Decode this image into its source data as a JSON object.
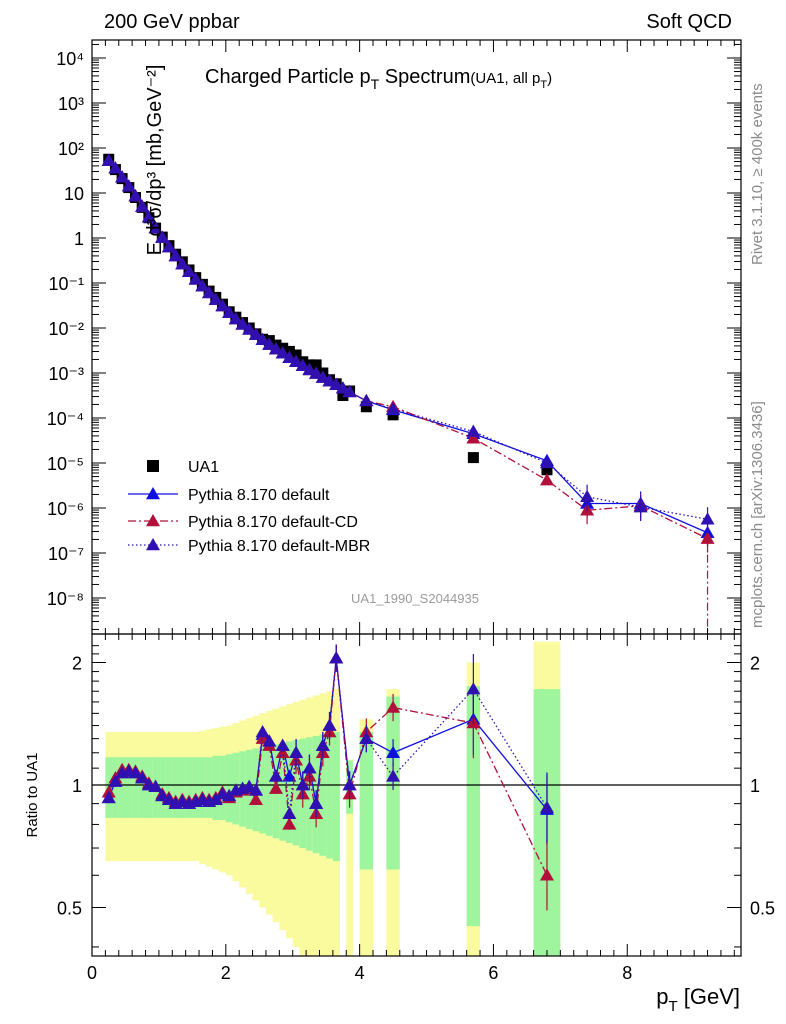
{
  "header": {
    "left": "200 GeV ppbar",
    "right": "Soft QCD"
  },
  "side_labels": {
    "rivet": "Rivet 3.1.10, ≥ 400k events",
    "mcplots": "mcplots.cern.ch [arXiv:1306.3436]"
  },
  "chart_data": [
    {
      "type": "scatter",
      "title_main": "Charged Particle p",
      "title_sub": "T",
      "title_main2": " Spectrum",
      "title_note": "(UA1, all p",
      "title_note_sub": "T",
      "title_note_end": ")",
      "ylabel": "E d³σ/dp³ [mb,GeV⁻²]",
      "y_scale": "log",
      "xlim": [
        0,
        9.7
      ],
      "ylim_log10": [
        -8.8,
        4.4
      ],
      "y_tick_labels": [
        "10⁻⁸",
        "10⁻⁷",
        "10⁻⁶",
        "10⁻⁵",
        "10⁻⁴",
        "10⁻³",
        "10⁻²",
        "10⁻¹",
        "1",
        "10",
        "10²",
        "10³",
        "10⁴"
      ],
      "watermark": "UA1_1990_S2044935",
      "legend_position": "lower-left",
      "series": [
        {
          "name": "UA1",
          "color": "#000000",
          "marker": "square",
          "x": [
            0.25,
            0.35,
            0.45,
            0.55,
            0.65,
            0.75,
            0.85,
            0.95,
            1.05,
            1.15,
            1.25,
            1.35,
            1.45,
            1.55,
            1.65,
            1.75,
            1.85,
            1.95,
            2.05,
            2.15,
            2.25,
            2.35,
            2.45,
            2.55,
            2.65,
            2.75,
            2.85,
            2.95,
            3.05,
            3.15,
            3.25,
            3.35,
            3.45,
            3.55,
            3.65,
            3.75,
            3.85,
            4.1,
            4.5,
            5.7,
            6.8
          ],
          "log10y": [
            1.75,
            1.52,
            1.32,
            1.12,
            0.9,
            0.68,
            0.45,
            0.22,
            0.02,
            -0.17,
            -0.36,
            -0.53,
            -0.71,
            -0.88,
            -1.03,
            -1.18,
            -1.32,
            -1.47,
            -1.64,
            -1.76,
            -1.88,
            -2.0,
            -2.13,
            -2.25,
            -2.28,
            -2.38,
            -2.45,
            -2.52,
            -2.6,
            -2.75,
            -2.82,
            -2.82,
            -3.0,
            -3.15,
            -3.24,
            -3.5,
            -3.4,
            -3.75,
            -3.93,
            -4.88,
            -5.15
          ]
        },
        {
          "name": "Pythia 8.170 default",
          "color": "#1010dd",
          "style": "solid",
          "marker": "triangle",
          "x": [
            0.25,
            0.35,
            0.45,
            0.55,
            0.65,
            0.75,
            0.85,
            0.95,
            1.05,
            1.15,
            1.25,
            1.35,
            1.45,
            1.55,
            1.65,
            1.75,
            1.85,
            1.95,
            2.05,
            2.15,
            2.25,
            2.35,
            2.45,
            2.55,
            2.65,
            2.75,
            2.85,
            2.95,
            3.05,
            3.15,
            3.25,
            3.35,
            3.45,
            3.55,
            3.65,
            3.75,
            3.85,
            4.1,
            4.5,
            5.7,
            6.8,
            7.4,
            8.2,
            9.2
          ],
          "log10y": [
            1.72,
            1.55,
            1.35,
            1.15,
            0.93,
            0.7,
            0.46,
            0.22,
            0.01,
            -0.2,
            -0.4,
            -0.58,
            -0.75,
            -0.92,
            -1.07,
            -1.22,
            -1.37,
            -1.51,
            -1.66,
            -1.8,
            -1.92,
            -2.03,
            -2.15,
            -2.26,
            -2.37,
            -2.47,
            -2.56,
            -2.66,
            -2.75,
            -2.84,
            -2.93,
            -3.01,
            -3.1,
            -3.18,
            -3.26,
            -3.34,
            -3.42,
            -3.62,
            -3.82,
            -4.35,
            -4.95,
            -5.9,
            -5.9,
            -6.55
          ]
        },
        {
          "name": "Pythia 8.170 default-CD",
          "color": "#b0103a",
          "style": "dashdot",
          "marker": "triangle",
          "x": [
            0.25,
            0.35,
            0.45,
            0.55,
            0.65,
            0.75,
            0.85,
            0.95,
            1.05,
            1.15,
            1.25,
            1.35,
            1.45,
            1.55,
            1.65,
            1.75,
            1.85,
            1.95,
            2.05,
            2.15,
            2.25,
            2.35,
            2.45,
            2.55,
            2.65,
            2.75,
            2.85,
            2.95,
            3.05,
            3.15,
            3.25,
            3.35,
            3.45,
            3.55,
            3.65,
            3.75,
            3.85,
            4.1,
            4.5,
            5.7,
            6.8,
            7.4,
            8.2,
            9.2
          ],
          "log10y": [
            1.72,
            1.55,
            1.35,
            1.15,
            0.93,
            0.7,
            0.46,
            0.22,
            0.01,
            -0.2,
            -0.4,
            -0.58,
            -0.75,
            -0.92,
            -1.07,
            -1.22,
            -1.37,
            -1.51,
            -1.66,
            -1.8,
            -1.92,
            -2.03,
            -2.15,
            -2.26,
            -2.37,
            -2.47,
            -2.56,
            -2.66,
            -2.75,
            -2.84,
            -2.93,
            -3.01,
            -3.1,
            -3.18,
            -3.26,
            -3.34,
            -3.42,
            -3.62,
            -3.75,
            -4.45,
            -5.38,
            -6.05,
            -5.95,
            -6.68
          ]
        },
        {
          "name": "Pythia 8.170 default-MBR",
          "color": "#3010b0",
          "style": "dotted",
          "marker": "triangle",
          "x": [
            0.25,
            0.35,
            0.45,
            0.55,
            0.65,
            0.75,
            0.85,
            0.95,
            1.05,
            1.15,
            1.25,
            1.35,
            1.45,
            1.55,
            1.65,
            1.75,
            1.85,
            1.95,
            2.05,
            2.15,
            2.25,
            2.35,
            2.45,
            2.55,
            2.65,
            2.75,
            2.85,
            2.95,
            3.05,
            3.15,
            3.25,
            3.35,
            3.45,
            3.55,
            3.65,
            3.75,
            3.85,
            4.1,
            4.5,
            5.7,
            6.8,
            7.4,
            8.2,
            9.2
          ],
          "log10y": [
            1.72,
            1.55,
            1.35,
            1.15,
            0.93,
            0.7,
            0.46,
            0.22,
            0.01,
            -0.2,
            -0.4,
            -0.58,
            -0.75,
            -0.92,
            -1.07,
            -1.22,
            -1.37,
            -1.51,
            -1.66,
            -1.8,
            -1.92,
            -2.03,
            -2.15,
            -2.26,
            -2.37,
            -2.47,
            -2.56,
            -2.66,
            -2.75,
            -2.84,
            -2.93,
            -3.01,
            -3.1,
            -3.18,
            -3.26,
            -3.34,
            -3.42,
            -3.62,
            -3.8,
            -4.3,
            -5.0,
            -5.75,
            -5.98,
            -6.25
          ]
        }
      ]
    },
    {
      "type": "scatter",
      "ylabel": "Ratio to UA1",
      "y_scale": "log",
      "ylim": [
        0.38,
        2.35
      ],
      "xlim": [
        0,
        9.7
      ],
      "x_ticks": [
        0,
        2,
        4,
        6,
        8
      ],
      "y_ticks": [
        0.5,
        1,
        2
      ],
      "xlabel_main": "p",
      "xlabel_sub": "T",
      "xlabel_unit": " [GeV]",
      "reference_line": 1,
      "bands": {
        "green_color": "#9ef59e",
        "yellow_color": "#fafa9e",
        "x_edges": [
          0.2,
          0.3,
          0.4,
          0.5,
          0.6,
          0.7,
          0.8,
          0.9,
          1.0,
          1.1,
          1.2,
          1.3,
          1.4,
          1.5,
          1.6,
          1.7,
          1.8,
          1.9,
          2.0,
          2.1,
          2.2,
          2.3,
          2.4,
          2.5,
          2.6,
          2.7,
          2.8,
          2.9,
          3.0,
          3.1,
          3.2,
          3.3,
          3.4,
          3.5,
          3.6,
          3.7
        ],
        "green_half": [
          0.17,
          0.17,
          0.17,
          0.17,
          0.17,
          0.17,
          0.17,
          0.17,
          0.17,
          0.17,
          0.17,
          0.17,
          0.17,
          0.17,
          0.17,
          0.17,
          0.18,
          0.18,
          0.19,
          0.2,
          0.21,
          0.22,
          0.23,
          0.24,
          0.25,
          0.26,
          0.27,
          0.28,
          0.29,
          0.3,
          0.31,
          0.32,
          0.33,
          0.34,
          0.35
        ],
        "yellow_half": [
          0.35,
          0.35,
          0.35,
          0.35,
          0.35,
          0.35,
          0.35,
          0.35,
          0.35,
          0.35,
          0.35,
          0.35,
          0.35,
          0.35,
          0.36,
          0.37,
          0.38,
          0.39,
          0.4,
          0.42,
          0.44,
          0.46,
          0.48,
          0.5,
          0.52,
          0.54,
          0.56,
          0.58,
          0.6,
          0.62,
          0.64,
          0.66,
          0.68,
          0.7,
          0.72
        ],
        "extra": [
          {
            "x0": 3.8,
            "x1": 3.9,
            "g_lo": 0.85,
            "g_hi": 1.15,
            "y_lo": 0.38,
            "y_hi": 1.05
          },
          {
            "x0": 4.0,
            "x1": 4.2,
            "g_lo": 0.62,
            "g_hi": 1.35,
            "y_lo": 0.38,
            "y_hi": 1.45
          },
          {
            "x0": 4.4,
            "x1": 4.6,
            "g_lo": 0.62,
            "g_hi": 1.65,
            "y_lo": 0.38,
            "y_hi": 1.72
          },
          {
            "x0": 5.6,
            "x1": 5.8,
            "g_lo": 0.45,
            "g_hi": 1.75,
            "y_lo": 0.38,
            "y_hi": 2.0
          },
          {
            "x0": 6.6,
            "x1": 7.0,
            "g_lo": 0.38,
            "g_hi": 1.72,
            "y_lo": 0.38,
            "y_hi": 2.25
          }
        ]
      },
      "series": [
        {
          "name": "Pythia 8.170 default",
          "color": "#1010dd",
          "style": "solid",
          "x": [
            0.25,
            0.35,
            0.45,
            0.55,
            0.65,
            0.75,
            0.85,
            0.95,
            1.05,
            1.15,
            1.25,
            1.35,
            1.45,
            1.55,
            1.65,
            1.75,
            1.85,
            1.95,
            2.05,
            2.15,
            2.25,
            2.35,
            2.45,
            2.55,
            2.65,
            2.75,
            2.85,
            2.95,
            3.05,
            3.15,
            3.25,
            3.35,
            3.45,
            3.55,
            3.65,
            3.85,
            4.1,
            4.5,
            5.7,
            6.8
          ],
          "y": [
            0.93,
            1.02,
            1.07,
            1.08,
            1.07,
            1.04,
            1.0,
            0.99,
            0.94,
            0.92,
            0.9,
            0.91,
            0.9,
            0.91,
            0.92,
            0.91,
            0.92,
            0.95,
            0.94,
            0.97,
            0.98,
            0.99,
            0.97,
            1.33,
            1.28,
            1.05,
            1.25,
            1.05,
            1.2,
            1.0,
            1.1,
            0.9,
            1.25,
            1.4,
            2.05,
            1.0,
            1.3,
            1.2,
            1.45,
            0.87
          ]
        },
        {
          "name": "Pythia 8.170 default-CD",
          "color": "#b0103a",
          "style": "dashdot",
          "x": [
            0.25,
            0.35,
            0.45,
            0.55,
            0.65,
            0.75,
            0.85,
            0.95,
            1.05,
            1.15,
            1.25,
            1.35,
            1.45,
            1.55,
            1.65,
            1.75,
            1.85,
            1.95,
            2.05,
            2.15,
            2.25,
            2.35,
            2.45,
            2.55,
            2.65,
            2.75,
            2.85,
            2.95,
            3.05,
            3.15,
            3.25,
            3.35,
            3.45,
            3.55,
            3.65,
            3.85,
            4.1,
            4.5,
            5.7,
            6.8
          ],
          "y": [
            0.96,
            1.04,
            1.09,
            1.09,
            1.08,
            1.05,
            1.01,
            0.99,
            0.95,
            0.93,
            0.91,
            0.92,
            0.91,
            0.92,
            0.93,
            0.92,
            0.93,
            0.96,
            0.93,
            0.96,
            0.97,
            0.98,
            0.92,
            1.3,
            1.25,
            0.98,
            1.2,
            0.8,
            1.15,
            0.95,
            1.05,
            0.85,
            1.2,
            1.35,
            2.05,
            0.95,
            1.35,
            1.55,
            1.42,
            0.6
          ]
        },
        {
          "name": "Pythia 8.170 default-MBR",
          "color": "#3010b0",
          "style": "dotted",
          "x": [
            0.25,
            0.35,
            0.45,
            0.55,
            0.65,
            0.75,
            0.85,
            0.95,
            1.05,
            1.15,
            1.25,
            1.35,
            1.45,
            1.55,
            1.65,
            1.75,
            1.85,
            1.95,
            2.05,
            2.15,
            2.25,
            2.35,
            2.45,
            2.55,
            2.65,
            2.75,
            2.85,
            2.95,
            3.05,
            3.15,
            3.25,
            3.35,
            3.45,
            3.55,
            3.65,
            3.85,
            4.1,
            4.5,
            5.7,
            6.8
          ],
          "y": [
            0.93,
            1.02,
            1.07,
            1.08,
            1.07,
            1.04,
            1.0,
            0.99,
            0.94,
            0.92,
            0.9,
            0.91,
            0.9,
            0.91,
            0.92,
            0.91,
            0.92,
            0.95,
            0.94,
            0.97,
            0.98,
            0.99,
            0.97,
            1.35,
            1.28,
            1.05,
            1.25,
            0.85,
            1.2,
            1.0,
            1.1,
            0.9,
            1.25,
            1.4,
            2.05,
            1.0,
            1.3,
            1.05,
            1.72,
            0.88
          ]
        }
      ]
    }
  ]
}
